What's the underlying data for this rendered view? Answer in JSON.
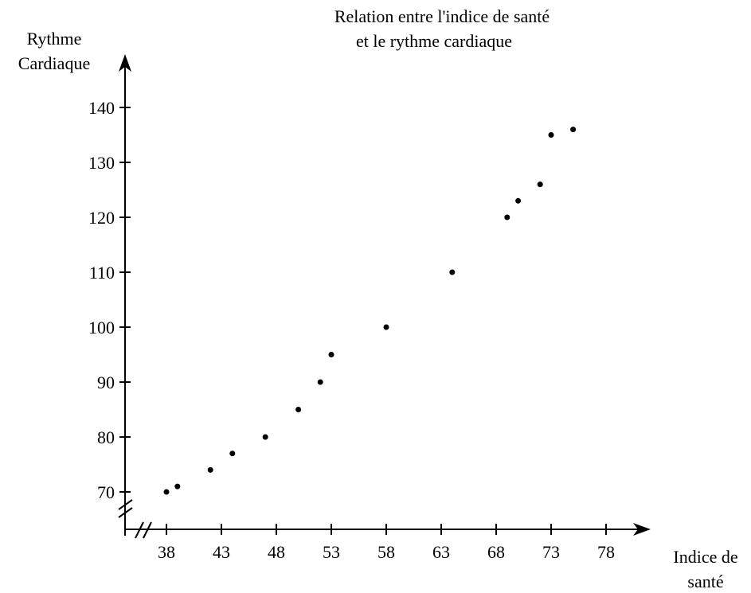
{
  "chart_data": {
    "type": "scatter",
    "title": [
      "Relation entre l'indice de santé",
      "et le rythme cardiaque"
    ],
    "ylabel": [
      "Rythme",
      "Cardiaque"
    ],
    "xlabel": [
      "Indice de",
      "santé"
    ],
    "xticks": [
      38,
      43,
      48,
      53,
      58,
      63,
      68,
      73,
      78
    ],
    "yticks": [
      70,
      80,
      90,
      100,
      110,
      120,
      130,
      140
    ],
    "xlim": [
      38,
      78
    ],
    "ylim": [
      70,
      140
    ],
    "axis_breaks": true,
    "grid": false,
    "points": [
      {
        "x": 38,
        "y": 70
      },
      {
        "x": 39,
        "y": 71
      },
      {
        "x": 42,
        "y": 74
      },
      {
        "x": 44,
        "y": 77
      },
      {
        "x": 47,
        "y": 80
      },
      {
        "x": 50,
        "y": 85
      },
      {
        "x": 52,
        "y": 90
      },
      {
        "x": 53,
        "y": 95
      },
      {
        "x": 58,
        "y": 100
      },
      {
        "x": 64,
        "y": 110
      },
      {
        "x": 69,
        "y": 120
      },
      {
        "x": 70,
        "y": 123
      },
      {
        "x": 72,
        "y": 126
      },
      {
        "x": 73,
        "y": 135
      },
      {
        "x": 75,
        "y": 136
      }
    ]
  }
}
